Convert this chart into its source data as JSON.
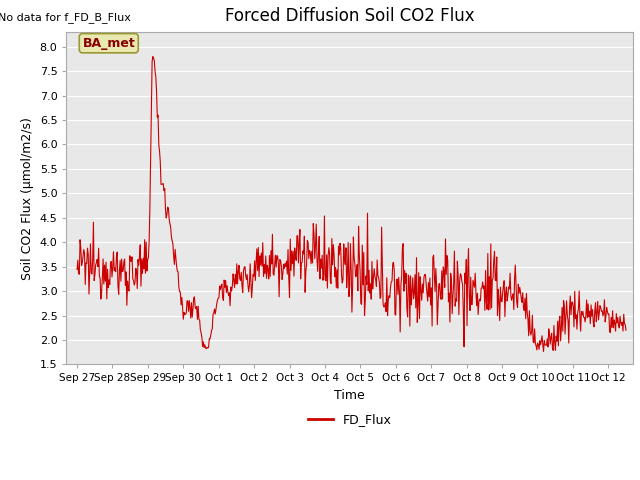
{
  "title": "Forced Diffusion Soil CO2 Flux",
  "no_data_label": "No data for f_FD_B_Flux",
  "xlabel": "Time",
  "ylabel": "Soil CO2 Flux (μmol/m2/s)",
  "ylim": [
    1.5,
    8.3
  ],
  "yticks": [
    1.5,
    2.0,
    2.5,
    3.0,
    3.5,
    4.0,
    4.5,
    5.0,
    5.5,
    6.0,
    6.5,
    7.0,
    7.5,
    8.0
  ],
  "x_tick_labels": [
    "Sep 27",
    "Sep 28",
    "Sep 29",
    "Sep 30",
    "Oct 1",
    "Oct 2",
    "Oct 3",
    "Oct 4",
    "Oct 5",
    "Oct 6",
    "Oct 7",
    "Oct 8",
    "Oct 9",
    "Oct 10",
    "Oct 11",
    "Oct 12"
  ],
  "line_color": "#cc0000",
  "line_label": "FD_Flux",
  "bg_color": "#ffffff",
  "plot_bg_color": "#e8e8e8",
  "ba_met_box_facecolor": "#e8e8b0",
  "ba_met_box_edgecolor": "#999933",
  "ba_met_text": "BA_met",
  "ba_met_text_color": "#880000",
  "title_fontsize": 12,
  "axis_label_fontsize": 9,
  "tick_label_fontsize": 8,
  "grid_color": "#ffffff",
  "no_data_fontsize": 8,
  "legend_fontsize": 9
}
